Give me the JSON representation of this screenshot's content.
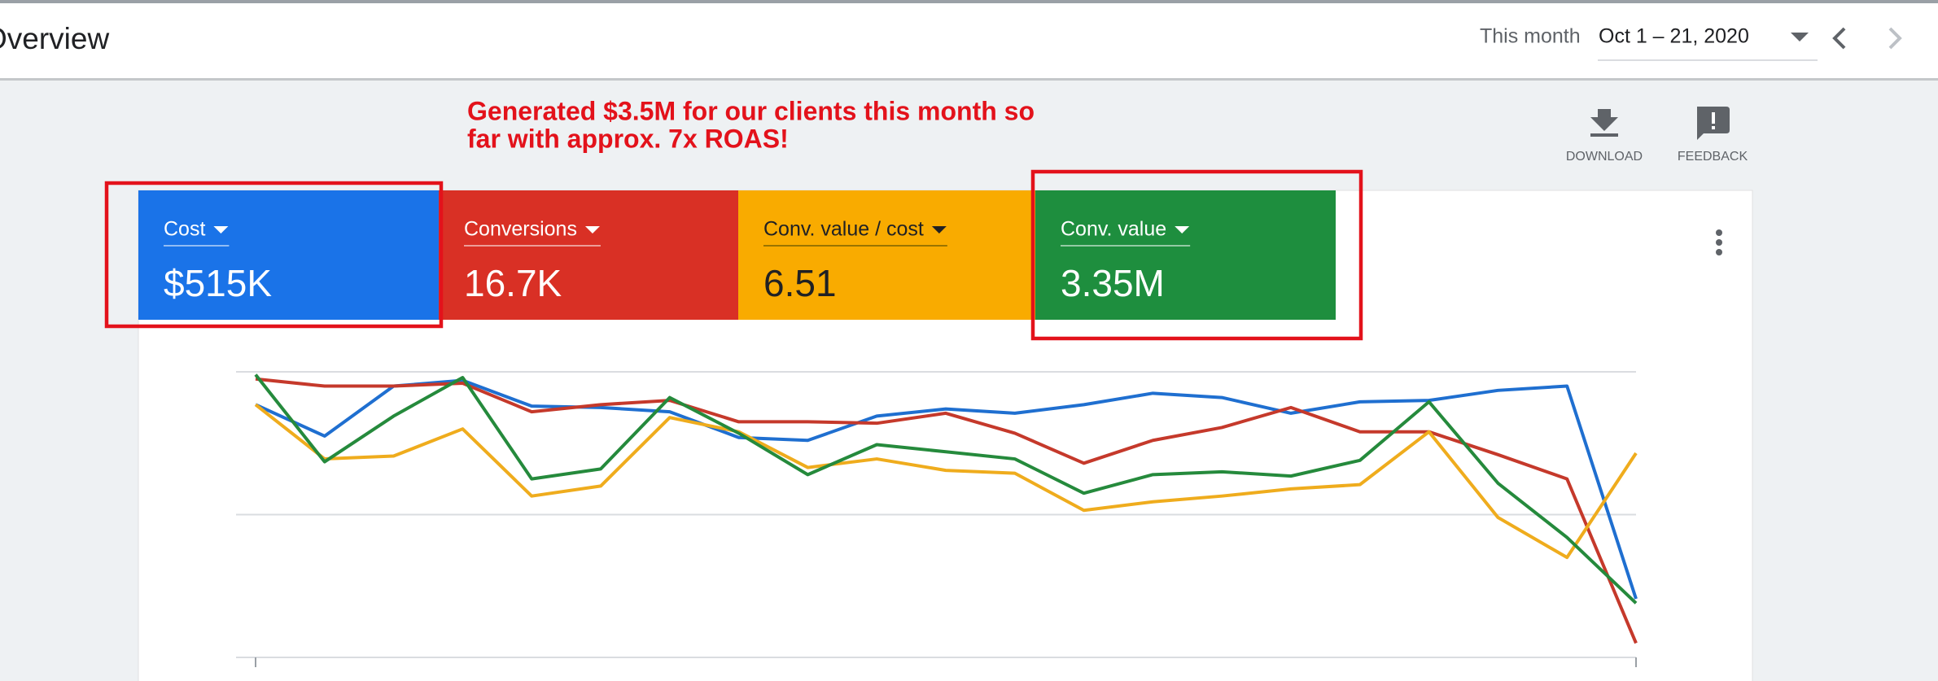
{
  "header": {
    "title": "Overview",
    "range_label": "This month",
    "range_value": "Oct 1 – 21, 2020"
  },
  "annotation": {
    "lines": [
      "Generated $3.5M for our clients this month so",
      "far with approx. 7x ROAS!"
    ]
  },
  "actions": {
    "download": "DOWNLOAD",
    "feedback": "FEEDBACK"
  },
  "chart_data": {
    "type": "line",
    "categories": [
      "Oct 1, 2020",
      null,
      null,
      null,
      null,
      null,
      null,
      null,
      null,
      null,
      null,
      null,
      null,
      null,
      null,
      null,
      null,
      null,
      null,
      null,
      "Oct 21, 2020"
    ],
    "ylim": [
      0,
      2
    ],
    "gridlines": [
      0,
      1,
      2
    ],
    "series": [
      {
        "name": "Cost",
        "total": "$515K",
        "color": "#1a73e8",
        "line_color": "#1f6fd0",
        "values": [
          1.77,
          1.55,
          1.9,
          1.94,
          1.76,
          1.75,
          1.72,
          1.54,
          1.52,
          1.69,
          1.74,
          1.71,
          1.77,
          1.85,
          1.82,
          1.71,
          1.79,
          1.8,
          1.87,
          1.9,
          0.41
        ]
      },
      {
        "name": "Conversions",
        "total": "16.7K",
        "color": "#d93025",
        "line_color": "#c5392b",
        "values": [
          1.95,
          1.9,
          1.9,
          1.92,
          1.72,
          1.77,
          1.8,
          1.65,
          1.65,
          1.64,
          1.71,
          1.57,
          1.36,
          1.52,
          1.61,
          1.75,
          1.58,
          1.58,
          1.42,
          1.25,
          0.1
        ]
      },
      {
        "name": "Conv. value / cost",
        "total": "6.51",
        "color": "#f9ab00",
        "line_color": "#efac1d",
        "values": [
          1.77,
          1.39,
          1.41,
          1.6,
          1.13,
          1.2,
          1.68,
          1.58,
          1.33,
          1.39,
          1.31,
          1.29,
          1.03,
          1.09,
          1.13,
          1.18,
          1.21,
          1.58,
          0.98,
          0.7,
          1.43
        ]
      },
      {
        "name": "Conv. value",
        "total": "3.35M",
        "color": "#1e8e3e",
        "line_color": "#258a3c",
        "values": [
          1.98,
          1.37,
          1.69,
          1.96,
          1.25,
          1.32,
          1.82,
          1.57,
          1.28,
          1.49,
          1.44,
          1.39,
          1.15,
          1.28,
          1.3,
          1.27,
          1.38,
          1.79,
          1.22,
          0.84,
          0.38
        ]
      }
    ]
  }
}
